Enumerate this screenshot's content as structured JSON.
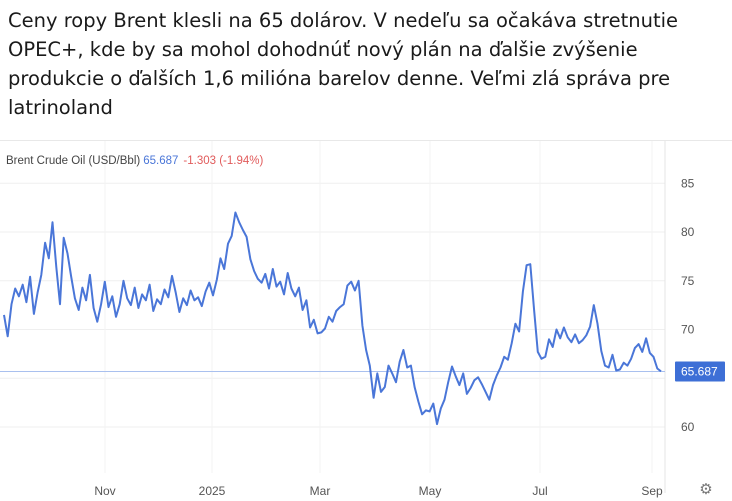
{
  "post": {
    "text": "Ceny ropy Brent klesli na 65 dolárov. V nedeľu sa očakáva stretnutie OPEC+, kde by sa mohol dohodnúť nový plán na ďalšie zvýšenie produkcie o ďalších 1,6 milióna barelov denne. Veľmi zlá správa pre latrinoland"
  },
  "chart_header": {
    "instrument": "Brent Crude Oil (USD/Bbl)",
    "last_price": "65.687",
    "change": "-1.303 (-1.94%)"
  },
  "settings_icon": "gear-icon",
  "colors": {
    "line": "#4a76d8",
    "change_negative": "#e15b5b",
    "price_tag": "#3d6fd6"
  },
  "chart_data": {
    "type": "line",
    "title": "",
    "xlabel": "",
    "ylabel": "",
    "ylim": [
      55,
      87
    ],
    "yticks": [
      60,
      65,
      70,
      75,
      80,
      85
    ],
    "ytick_labels": [
      "60",
      "70",
      "75",
      "80",
      "85"
    ],
    "xtick_labels": [
      "Nov",
      "2025",
      "Mar",
      "May",
      "Jul",
      "Sep"
    ],
    "last_value_label": "65.687",
    "reference_line": 65.687,
    "grid": true,
    "series": [
      {
        "values": [
          71.5,
          69.3,
          72.6,
          74.2,
          73.4,
          74.6,
          72.8,
          75.4,
          71.6,
          73.8,
          75.6,
          78.9,
          77.3,
          81.0,
          76.4,
          72.6,
          79.4,
          77.8,
          75.4,
          73.2,
          72.0,
          74.3,
          73.0,
          75.6,
          72.2,
          70.8,
          72.6,
          74.9,
          72.3,
          73.4,
          71.3,
          72.6,
          75.0,
          73.2,
          72.5,
          74.3,
          72.2,
          73.6,
          73.0,
          74.6,
          71.9,
          73.1,
          72.6,
          74.1,
          73.3,
          75.5,
          73.8,
          71.8,
          73.2,
          72.5,
          74.0,
          73.0,
          73.3,
          72.4,
          73.9,
          74.8,
          73.5,
          75.1,
          77.3,
          76.2,
          78.8,
          79.6,
          82.0,
          81.0,
          80.2,
          79.5,
          77.2,
          76.0,
          75.2,
          74.8,
          75.7,
          74.2,
          76.2,
          74.4,
          74.9,
          73.6,
          75.8,
          74.2,
          73.4,
          74.3,
          72.0,
          73.0,
          70.2,
          71.0,
          69.6,
          69.7,
          70.1,
          71.3,
          70.8,
          71.9,
          72.3,
          72.6,
          74.5,
          74.9,
          74.0,
          75.0,
          70.4,
          67.9,
          66.3,
          63.0,
          65.5,
          63.6,
          64.1,
          66.3,
          65.5,
          64.6,
          66.7,
          67.9,
          66.1,
          66.3,
          64.1,
          62.6,
          61.3,
          61.7,
          61.6,
          62.4,
          60.3,
          61.9,
          62.8,
          64.6,
          66.2,
          65.2,
          64.3,
          65.5,
          63.4,
          64.0,
          64.8,
          65.1,
          64.4,
          63.6,
          62.8,
          64.3,
          65.3,
          66.1,
          67.2,
          66.9,
          68.6,
          70.6,
          69.8,
          73.9,
          76.6,
          76.7,
          72.0,
          67.7,
          67.0,
          67.2,
          69.0,
          68.2,
          70.0,
          69.1,
          70.2,
          69.2,
          68.7,
          69.5,
          68.6,
          68.9,
          69.4,
          70.3,
          72.5,
          70.6,
          67.8,
          66.3,
          66.1,
          67.4,
          65.8,
          65.9,
          66.6,
          66.3,
          67.0,
          68.1,
          68.5,
          67.7,
          69.1,
          67.6,
          67.2,
          66.0,
          65.7
        ]
      }
    ]
  }
}
